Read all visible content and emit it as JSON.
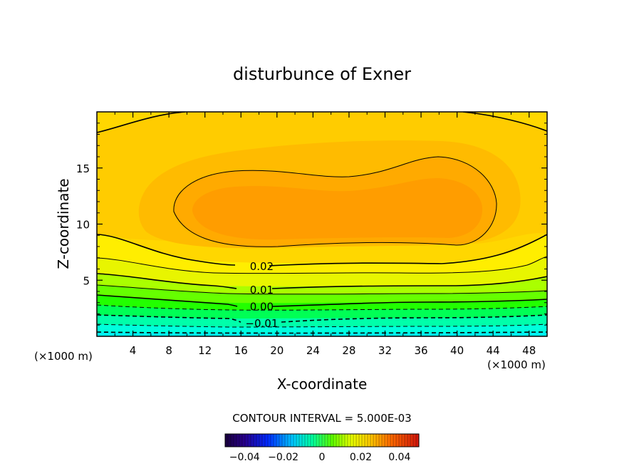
{
  "chart_data": {
    "type": "contour",
    "title": "disturbunce of Exner",
    "xlabel": "X-coordinate",
    "ylabel": "Z-coordinate",
    "x_unit_left": "(×1000 m)",
    "x_unit_right": "(×1000 m)",
    "xlim": [
      0,
      50
    ],
    "ylim": [
      0,
      20
    ],
    "x_ticks": [
      4,
      8,
      12,
      16,
      20,
      24,
      28,
      32,
      36,
      40,
      44,
      48
    ],
    "y_ticks": [
      5,
      10,
      15
    ],
    "contour_interval_label": "CONTOUR INTERVAL = 5.000E-03",
    "contour_interval": 0.005,
    "contour_labels": [
      {
        "text": "0.02",
        "value": 0.02,
        "x": 17.2,
        "z": 6.3
      },
      {
        "text": "0.01",
        "value": 0.01,
        "x": 17.2,
        "z": 4.2
      },
      {
        "text": "0.00",
        "value": 0.0,
        "x": 17.2,
        "z": 2.7
      },
      {
        "text": "−0.01",
        "value": -0.01,
        "x": 17.2,
        "z": 1.2
      }
    ],
    "field_approx": {
      "surface_value": -0.02,
      "interior_max": 0.034,
      "interior_max_region_x": [
        12,
        42
      ],
      "interior_max_region_z": [
        8,
        14
      ],
      "top_value": 0.025
    },
    "colorbar": {
      "range": [
        -0.05,
        0.05
      ],
      "tick_labels": [
        "−0.04",
        "−0.02",
        "0",
        "0.02",
        "0.04"
      ],
      "tick_values": [
        -0.04,
        -0.02,
        0,
        0.02,
        0.04
      ]
    }
  }
}
